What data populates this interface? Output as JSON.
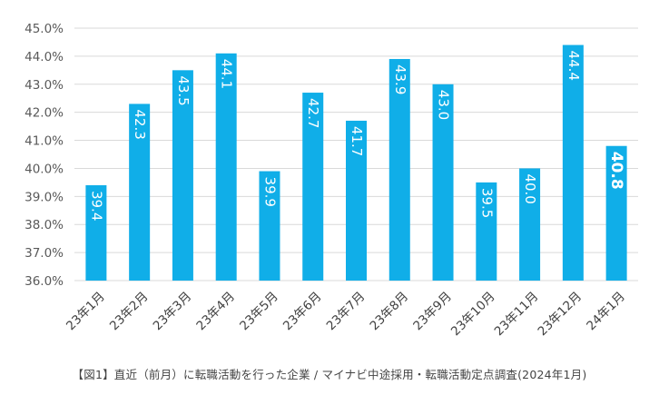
{
  "chart_data": {
    "type": "bar",
    "categories": [
      "23年1月",
      "23年2月",
      "23年3月",
      "23年4月",
      "23年5月",
      "23年6月",
      "23年7月",
      "23年8月",
      "23年9月",
      "23年10月",
      "23年11月",
      "23年12月",
      "24年1月"
    ],
    "values": [
      39.4,
      42.3,
      43.5,
      44.1,
      39.9,
      42.7,
      41.7,
      43.9,
      43.0,
      39.5,
      40.0,
      44.4,
      40.8
    ],
    "value_labels": [
      "39.4",
      "42.3",
      "43.5",
      "44.1",
      "39.9",
      "42.7",
      "41.7",
      "43.9",
      "43.0",
      "39.5",
      "40.0",
      "44.4",
      "40.8"
    ],
    "highlight_index": 12,
    "y_ticks": [
      "36.0%",
      "37.0%",
      "38.0%",
      "39.0%",
      "40.0%",
      "41.0%",
      "42.0%",
      "43.0%",
      "44.0%",
      "45.0%"
    ],
    "ylim": [
      36,
      45
    ],
    "grid": true,
    "bar_color": "#10aee8",
    "label_color": "#ffffff",
    "grid_color": "#d9d9d9",
    "tick_color": "#595959",
    "title": "",
    "xlabel": "",
    "ylabel": ""
  },
  "caption": "【図1】直近（前月）に転職活動を行った企業 / マイナビ中途採用・転職活動定点調査(2024年1月)"
}
